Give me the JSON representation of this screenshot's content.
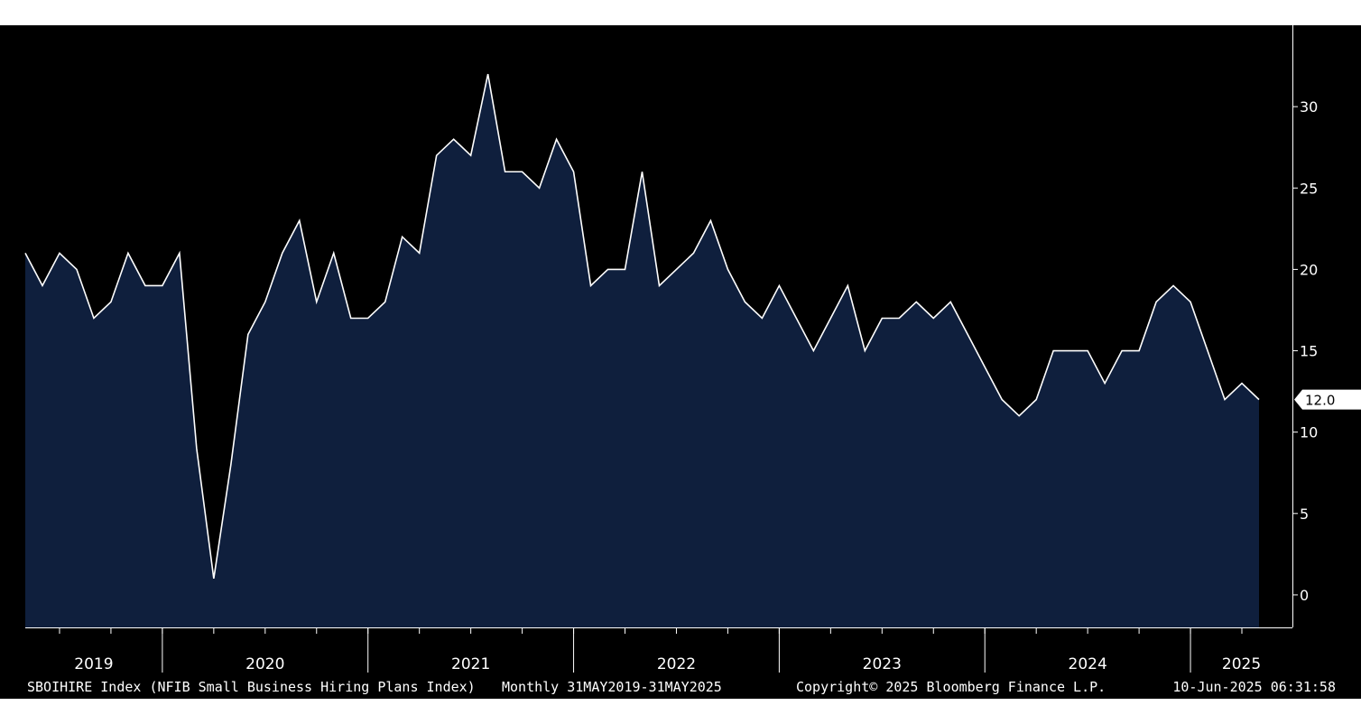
{
  "chart_data": {
    "type": "area",
    "frequency": "Monthly",
    "ylim": [
      -2,
      35
    ],
    "yticks": [
      0,
      5,
      10,
      15,
      20,
      25,
      30
    ],
    "years": [
      "2019",
      "2020",
      "2021",
      "2022",
      "2023",
      "2024",
      "2025"
    ],
    "x_start": "2019-05",
    "x_end": "2025-05",
    "values": [
      21,
      19,
      21,
      20,
      17,
      18,
      21,
      19,
      19,
      21,
      9,
      1,
      8,
      16,
      18,
      21,
      23,
      18,
      21,
      17,
      17,
      18,
      22,
      21,
      27,
      28,
      27,
      32,
      26,
      26,
      25,
      28,
      26,
      19,
      20,
      20,
      26,
      19,
      20,
      21,
      23,
      20,
      18,
      17,
      19,
      17,
      15,
      17,
      19,
      15,
      17,
      17,
      18,
      17,
      18,
      16,
      14,
      12,
      11,
      12,
      15,
      15,
      15,
      13,
      15,
      15,
      18,
      19,
      18,
      15,
      12,
      13,
      12
    ],
    "last_value_label": "12.0",
    "fill_color": "#0f1f3d",
    "line_color": "#ffffff",
    "background_color": "#000000"
  },
  "footer": {
    "series": "SBOIHIRE Index (NFIB Small Business Hiring Plans Index)",
    "range": "Monthly 31MAY2019-31MAY2025",
    "copyright": "Copyright© 2025 Bloomberg Finance L.P.",
    "timestamp": "10-Jun-2025 06:31:58"
  }
}
